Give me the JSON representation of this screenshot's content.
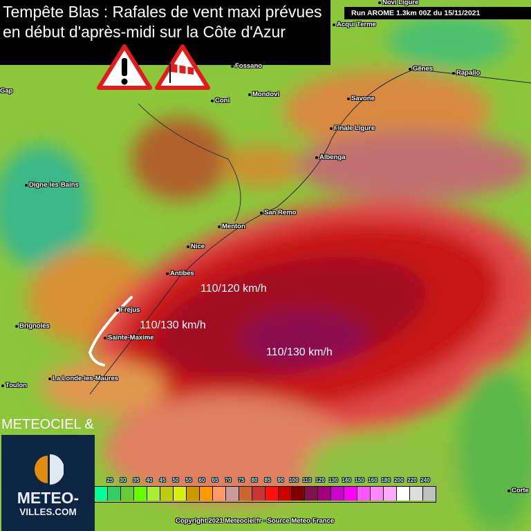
{
  "title": "Tempête Blas : Rafales de vent maxi prévues en début d'après-midi sur la Côte d'Azur",
  "run_info": "Run AROME 1.3km 00Z du 15/11/2021",
  "warning_icons": [
    "warning-exclamation-icon",
    "windsock-warning-icon"
  ],
  "cities": [
    "Novi Ligure",
    "Acqui Terme",
    "Fossano",
    "Gênes",
    "Rapallo",
    "Gap",
    "Coni",
    "Mondovi",
    "Savone",
    "Finale Ligure",
    "Albenga",
    "Digne-les-Bains",
    "San Remo",
    "Menton",
    "Nice",
    "Antibes",
    "Fréjus",
    "Sainte-Maxime",
    "Brignoles",
    "Toulon",
    "La Londe-les-Maures",
    "Corte"
  ],
  "wind_labels": [
    "110/120 km/h",
    "110/130 km/h",
    "110/130 km/h"
  ],
  "legend": {
    "values": [
      "25",
      "30",
      "35",
      "40",
      "45",
      "50",
      "55",
      "60",
      "65",
      "70",
      "75",
      "80",
      "85",
      "90",
      "100",
      "110",
      "120",
      "130",
      "140",
      "150",
      "160",
      "180",
      "200",
      "220",
      "240"
    ],
    "colors": [
      "#00ff99",
      "#33cc66",
      "#66cc33",
      "#66ff00",
      "#aaee33",
      "#c0cc11",
      "#d8ee11",
      "#cc9900",
      "#ff9900",
      "#ff9966",
      "#cc9999",
      "#cc6633",
      "#cc3333",
      "#ff1111",
      "#cc0000",
      "#800000",
      "#801050",
      "#a00080",
      "#cc00cc",
      "#ff00ff",
      "#ff55ff",
      "#ff88ff",
      "#ffaaff",
      "#ffffff",
      "#dddddd",
      "#c0c0c0"
    ]
  },
  "branding": {
    "prefix": "METEOCIEL &",
    "logo_line1": "METEO-",
    "logo_line2": "VILLES.COM"
  },
  "copyright": "Copyright 2021 Meteociel.fr - Source Meteo-France",
  "colors": {
    "land": "#7cc03a",
    "sea_strong": "#c81818",
    "sea_extreme": "#8a1040"
  }
}
